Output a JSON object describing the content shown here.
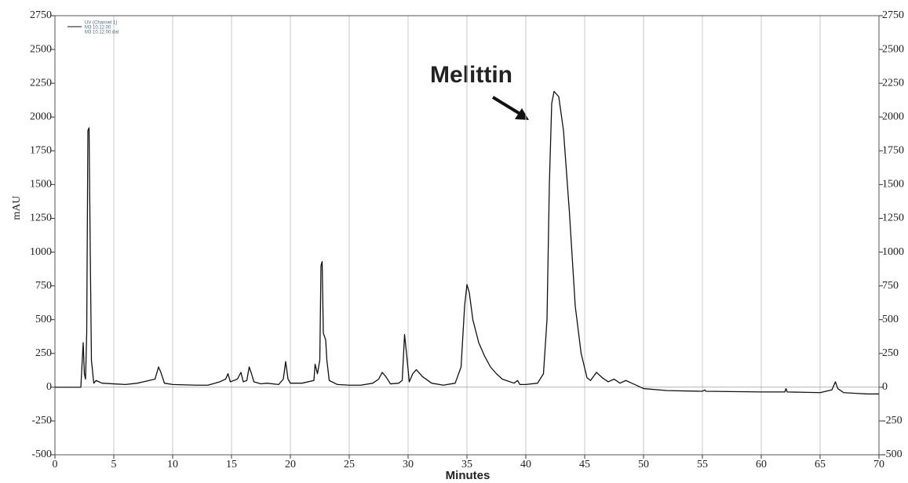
{
  "chart_data": {
    "type": "line",
    "x_label": "Minutes",
    "y_label": "mAU",
    "annotation": "Melittin",
    "legend_notes": [
      "M3 10.12.00",
      "M3 10.12.00.dat"
    ],
    "x": [
      0,
      2.2,
      2.4,
      2.5,
      2.6,
      2.7,
      2.8,
      2.9,
      3.0,
      3.1,
      3.3,
      3.5,
      4,
      5,
      6,
      7,
      7.5,
      8.5,
      8.8,
      9.0,
      9.3,
      10,
      12,
      13,
      14,
      14.5,
      14.7,
      14.9,
      15.5,
      15.8,
      16,
      16.3,
      16.5,
      16.7,
      16.9,
      17.5,
      18,
      19,
      19.4,
      19.6,
      19.8,
      20,
      21,
      22,
      22.1,
      22.3,
      22.5,
      22.6,
      22.7,
      22.8,
      23,
      23.1,
      23.3,
      24,
      25,
      26,
      27,
      27.5,
      27.8,
      28.1,
      28.5,
      29.2,
      29.5,
      29.7,
      29.9,
      30.1,
      30.4,
      30.7,
      31.2,
      32,
      33,
      34,
      34.5,
      34.8,
      35,
      35.2,
      35.5,
      36,
      36.5,
      37,
      37.5,
      38,
      39,
      39.3,
      39.5,
      40,
      41,
      41.5,
      41.8,
      42,
      42.2,
      42.4,
      42.8,
      43.2,
      43.7,
      44.2,
      44.7,
      45.2,
      45.5,
      46,
      46.5,
      47,
      47.5,
      48,
      48.5,
      49,
      50,
      52,
      55,
      55.2,
      55.3,
      60,
      62,
      62.1,
      62.2,
      65,
      65.5,
      66,
      66.3,
      66.5,
      67,
      68,
      69,
      70
    ],
    "series": [
      {
        "name": "UV (Channel 1)",
        "color": "#111111",
        "values": [
          0,
          0,
          330,
          100,
          60,
          400,
          1900,
          1920,
          1000,
          200,
          30,
          50,
          30,
          25,
          20,
          30,
          40,
          60,
          150,
          110,
          30,
          20,
          15,
          15,
          40,
          60,
          100,
          40,
          60,
          110,
          40,
          50,
          150,
          100,
          40,
          25,
          30,
          20,
          60,
          190,
          60,
          30,
          30,
          50,
          170,
          100,
          200,
          900,
          930,
          400,
          350,
          200,
          50,
          20,
          15,
          15,
          30,
          60,
          110,
          80,
          25,
          30,
          50,
          390,
          220,
          40,
          100,
          130,
          80,
          30,
          15,
          30,
          150,
          600,
          760,
          700,
          500,
          330,
          230,
          150,
          100,
          60,
          30,
          50,
          20,
          20,
          30,
          100,
          500,
          1500,
          2100,
          2190,
          2150,
          1900,
          1300,
          600,
          250,
          70,
          50,
          110,
          70,
          40,
          60,
          30,
          50,
          30,
          -10,
          -25,
          -30,
          -20,
          -30,
          -35,
          -35,
          -10,
          -35,
          -40,
          -30,
          -20,
          40,
          -10,
          -40,
          -45,
          -50,
          -50
        ]
      }
    ],
    "xlim": [
      0,
      70
    ],
    "xticks": [
      0,
      5,
      10,
      15,
      20,
      25,
      30,
      35,
      40,
      45,
      50,
      55,
      60,
      65,
      70
    ],
    "ylim": [
      -500,
      2750
    ],
    "yticks": [
      -500,
      -250,
      0,
      250,
      500,
      750,
      1000,
      1250,
      1500,
      1750,
      2000,
      2250,
      2500,
      2750
    ],
    "grid": "x"
  }
}
